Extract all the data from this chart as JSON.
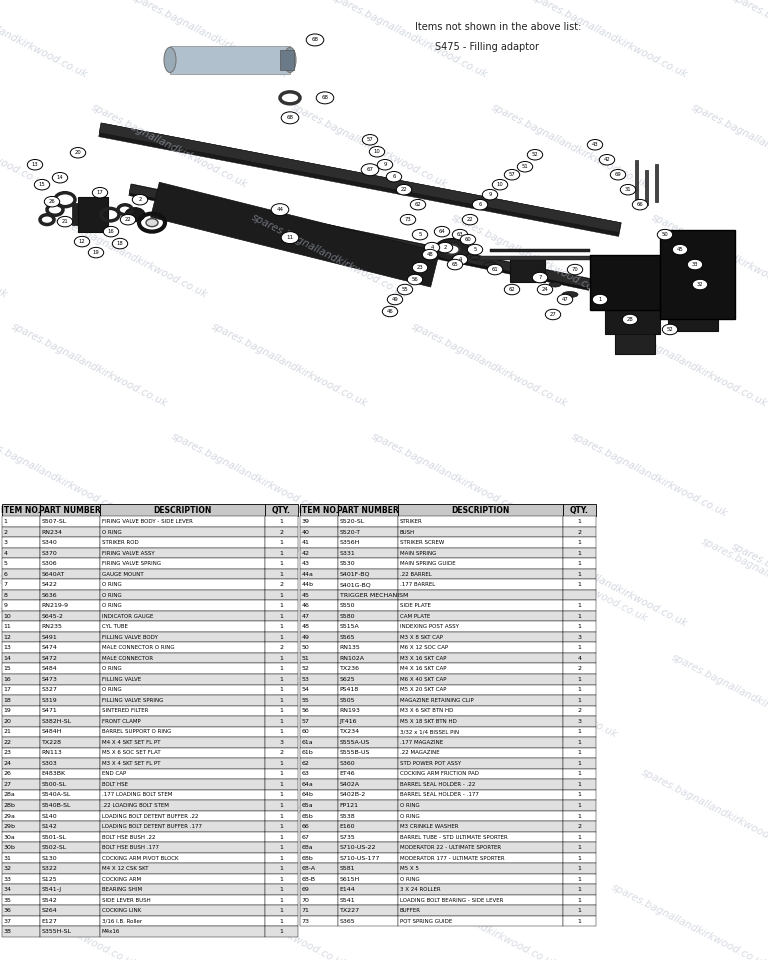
{
  "bg_color": "#ffffff",
  "watermark": "spares.bagnallandkirkwood.co.uk",
  "items_not_shown": "Items not shown in the above list:",
  "extra_item": "S475 - Filling adaptor",
  "table_header_bg": "#c8c8c8",
  "table_row_bg1": "#ffffff",
  "table_row_bg2": "#e0e0e0",
  "table_border": "#000000",
  "col_headers": [
    "ITEM NO.",
    "PART NUMBER",
    "DESCRIPTION",
    "QTY.",
    "ITEM NO.",
    "PART NUMBER",
    "DESCRIPTION",
    "QTY."
  ],
  "parts_left": [
    [
      "1",
      "S507-SL",
      "FIRING VALVE BODY - SIDE LEVER",
      "1"
    ],
    [
      "2",
      "RN234",
      "O RING",
      "2"
    ],
    [
      "3",
      "S340",
      "STRIKER ROD",
      "1"
    ],
    [
      "4",
      "S370",
      "FIRING VALVE ASSY",
      "1"
    ],
    [
      "5",
      "S306",
      "FIRING VALVE SPRING",
      "1"
    ],
    [
      "6",
      "S640AT",
      "GAUGE MOUNT",
      "1"
    ],
    [
      "7",
      "S422",
      "O RING",
      "2"
    ],
    [
      "8",
      "S636",
      "O RING",
      "1"
    ],
    [
      "9",
      "RN219-9",
      "O RING",
      "1"
    ],
    [
      "10",
      "S645-2",
      "INDICATOR GAUGE",
      "1"
    ],
    [
      "11",
      "RN235",
      "CYL TUBE",
      "1"
    ],
    [
      "12",
      "S491",
      "FILLING VALVE BODY",
      "1"
    ],
    [
      "13",
      "S474",
      "MALE CONNECTOR O RING",
      "2"
    ],
    [
      "14",
      "S472",
      "MALE CONNECTOR",
      "1"
    ],
    [
      "15",
      "S484",
      "O RING",
      "1"
    ],
    [
      "16",
      "S473",
      "FILLING VALVE",
      "1"
    ],
    [
      "17",
      "S327",
      "O RING",
      "1"
    ],
    [
      "18",
      "S319",
      "FILLING VALVE SPRING",
      "1"
    ],
    [
      "19",
      "S471",
      "SINTERED FILTER",
      "1"
    ],
    [
      "20",
      "S382H-SL",
      "FRONT CLAMP",
      "1"
    ],
    [
      "21",
      "S484H",
      "BARREL SUPPORT O RING",
      "1"
    ],
    [
      "22",
      "TX228",
      "M4 X 4 SKT SET FL PT",
      "3"
    ],
    [
      "23",
      "RN113",
      "M5 X 6 SOC SET FLAT",
      "2"
    ],
    [
      "24",
      "S303",
      "M3 X 4 SKT SET FL PT",
      "1"
    ],
    [
      "26",
      "E483BK",
      "END CAP",
      "1"
    ],
    [
      "27",
      "S500-SL",
      "BOLT HSE",
      "1"
    ],
    [
      "28a",
      "S540A-SL",
      ".177 LOADING BOLT STEM",
      "1"
    ],
    [
      "28b",
      "S540B-SL",
      ".22 LOADING BOLT STEM",
      "1"
    ],
    [
      "29a",
      "S140",
      "LOADING BOLT DETENT BUFFER .22",
      "1"
    ],
    [
      "29b",
      "S142",
      "LOADING BOLT DETENT BUFFER .177",
      "1"
    ],
    [
      "30a",
      "S501-SL",
      "BOLT HSE BUSH .22",
      "1"
    ],
    [
      "30b",
      "S502-SL",
      "BOLT HSE BUSH .177",
      "1"
    ],
    [
      "31",
      "S130",
      "COCKING ARM PIVOT BLOCK",
      "1"
    ],
    [
      "32",
      "S322",
      "M4 X 12 CSK SKT",
      "1"
    ],
    [
      "33",
      "S125",
      "COCKING ARM",
      "1"
    ],
    [
      "34",
      "S541-J",
      "BEARING SHIM",
      "1"
    ],
    [
      "35",
      "S542",
      "SIDE LEVER BUSH",
      "1"
    ],
    [
      "36",
      "S264",
      "COCKING LINK",
      "1"
    ],
    [
      "37",
      "E127",
      "3/16 I.B. Roller",
      "1"
    ],
    [
      "38",
      "S355H-SL",
      "M4x16",
      "1"
    ]
  ],
  "parts_right": [
    [
      "39",
      "S520-SL",
      "STRIKER",
      "1"
    ],
    [
      "40",
      "S520-T",
      "BUSH",
      "2"
    ],
    [
      "41",
      "S356H",
      "STRIKER SCREW",
      "1"
    ],
    [
      "42",
      "S331",
      "MAIN SPRING",
      "1"
    ],
    [
      "43",
      "S530",
      "MAIN SPRING GUIDE",
      "1"
    ],
    [
      "44a",
      "S401F-BQ",
      ".22 BARREL",
      "1"
    ],
    [
      "44b",
      "S401G-BQ",
      ".177 BARREL",
      "1"
    ],
    [
      "45",
      "TRIGGER MECHANISM",
      "",
      ""
    ],
    [
      "46",
      "S550",
      "SIDE PLATE",
      "1"
    ],
    [
      "47",
      "S580",
      "CAM PLATE",
      "1"
    ],
    [
      "48",
      "S515A",
      "INDEXING POST ASSY",
      "1"
    ],
    [
      "49",
      "S565",
      "M3 X 8 SKT CAP",
      "3"
    ],
    [
      "50",
      "RN135",
      "M6 X 12 SOC CAP",
      "1"
    ],
    [
      "51",
      "RN102A",
      "M3 X 16 SKT CAP",
      "4"
    ],
    [
      "52",
      "TX236",
      "M4 X 16 SKT CAP",
      "2"
    ],
    [
      "53",
      "S625",
      "M6 X 40 SKT CAP",
      "1"
    ],
    [
      "54",
      "PS418",
      "M5 X 20 SKT CAP",
      "1"
    ],
    [
      "55",
      "S505",
      "MAGAZINE RETAINING CLIP",
      "1"
    ],
    [
      "56",
      "RN193",
      "M3 X 6 SKT BTN HD",
      "2"
    ],
    [
      "57",
      "JT416",
      "M5 X 18 SKT BTN HD",
      "3"
    ],
    [
      "60",
      "TX234",
      "3/32 x 1/4 BISSEL PIN",
      "1"
    ],
    [
      "61a",
      "S555A-US",
      ".177 MAGAZINE",
      "1"
    ],
    [
      "61b",
      "S555B-US",
      ".22 MAGAZINE",
      "1"
    ],
    [
      "62",
      "S360",
      "STD POWER POT ASSY",
      "1"
    ],
    [
      "63",
      "ET46",
      "COCKING ARM FRICTION PAD",
      "1"
    ],
    [
      "64a",
      "S402A",
      "BARREL SEAL HOLDER - .22",
      "1"
    ],
    [
      "64b",
      "S402B-2",
      "BARREL SEAL HOLDER - .177",
      "1"
    ],
    [
      "65a",
      "FP121",
      "O RING",
      "1"
    ],
    [
      "65b",
      "S538",
      "O RING",
      "1"
    ],
    [
      "66",
      "E160",
      "M3 CRINKLE WASHER",
      "2"
    ],
    [
      "67",
      "S735",
      "BARREL TUBE - STD ULTIMATE SPORTER",
      "1"
    ],
    [
      "68a",
      "S710-US-22",
      "MODERATOR 22 - ULTIMATE SPORTER",
      "1"
    ],
    [
      "68b",
      "S710-US-177",
      "MODERATOR 177 - ULTIMATE SPORTER",
      "1"
    ],
    [
      "68-A",
      "S581",
      "M5 X 5",
      "1"
    ],
    [
      "68-B",
      "S615H",
      "O RING",
      "1"
    ],
    [
      "69",
      "E144",
      "3 X 24 ROLLER",
      "1"
    ],
    [
      "70",
      "S541",
      "LOADING BOLT BEARING - SIDE LEVER",
      "1"
    ],
    [
      "71",
      "TX227",
      "BUFFER",
      "1"
    ],
    [
      "73",
      "S365",
      "POT SPRING GUIDE",
      "1"
    ]
  ]
}
